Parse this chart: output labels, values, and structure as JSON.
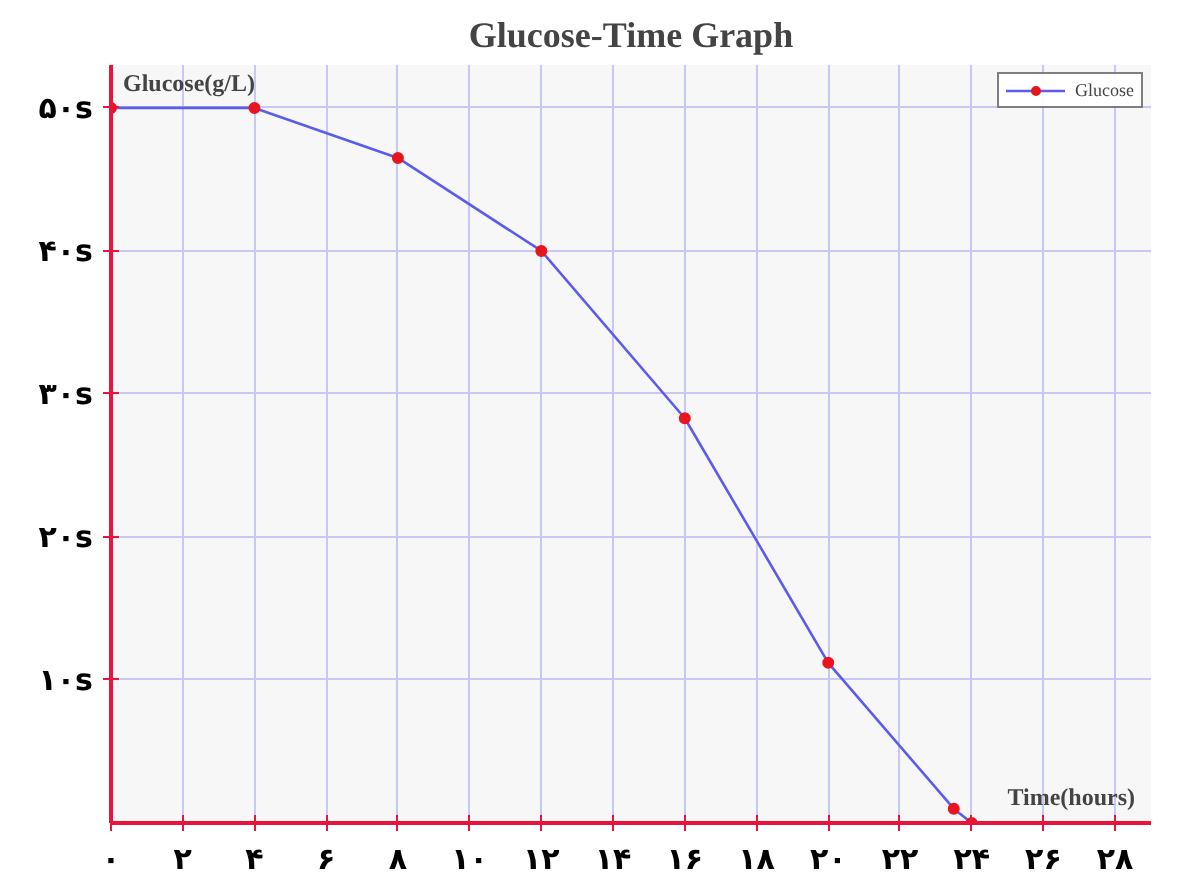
{
  "chart_data": {
    "type": "line",
    "title": "Glucose-Time Graph",
    "xlabel": "Time(hours)",
    "ylabel": "Glucose(g/L)",
    "x": [
      0,
      4,
      8,
      12,
      16,
      20,
      23.5,
      24
    ],
    "series": [
      {
        "name": "Glucose",
        "color": "#5b5bf0",
        "colors": [
          "#e8141e",
          "#e8141e",
          "#e8141e",
          "#e8141e",
          "#e8141e",
          "#e8141e",
          "#e8141e",
          "#e8141e"
        ],
        "values": [
          50,
          50,
          46.5,
          40,
          28.3,
          11.2,
          1,
          0
        ]
      }
    ],
    "xlim": [
      0,
      29
    ],
    "ylim": [
      0,
      53
    ],
    "xticks": [
      {
        "value": 0,
        "label": "۰"
      },
      {
        "value": 2,
        "label": "۲"
      },
      {
        "value": 4,
        "label": "۴"
      },
      {
        "value": 6,
        "label": "۶"
      },
      {
        "value": 8,
        "label": "۸"
      },
      {
        "value": 10,
        "label": "۱۰"
      },
      {
        "value": 12,
        "label": "۱۲"
      },
      {
        "value": 14,
        "label": "۱۴"
      },
      {
        "value": 16,
        "label": "۱۶"
      },
      {
        "value": 18,
        "label": "۱۸"
      },
      {
        "value": 20,
        "label": "۲۰"
      },
      {
        "value": 22,
        "label": "۲۲"
      },
      {
        "value": 24,
        "label": "۲۴"
      },
      {
        "value": 26,
        "label": "۲۶"
      },
      {
        "value": 28,
        "label": "۲۸"
      }
    ],
    "yticks": [
      {
        "value": 10,
        "label": "۱۰s"
      },
      {
        "value": 20,
        "label": "۲۰s"
      },
      {
        "value": 30,
        "label": "۳۰s"
      },
      {
        "value": 40,
        "label": "۴۰s"
      },
      {
        "value": 50,
        "label": "۵۰s"
      }
    ],
    "grid": true,
    "legend": "top right",
    "marker": "circle",
    "line_style": "solid"
  }
}
